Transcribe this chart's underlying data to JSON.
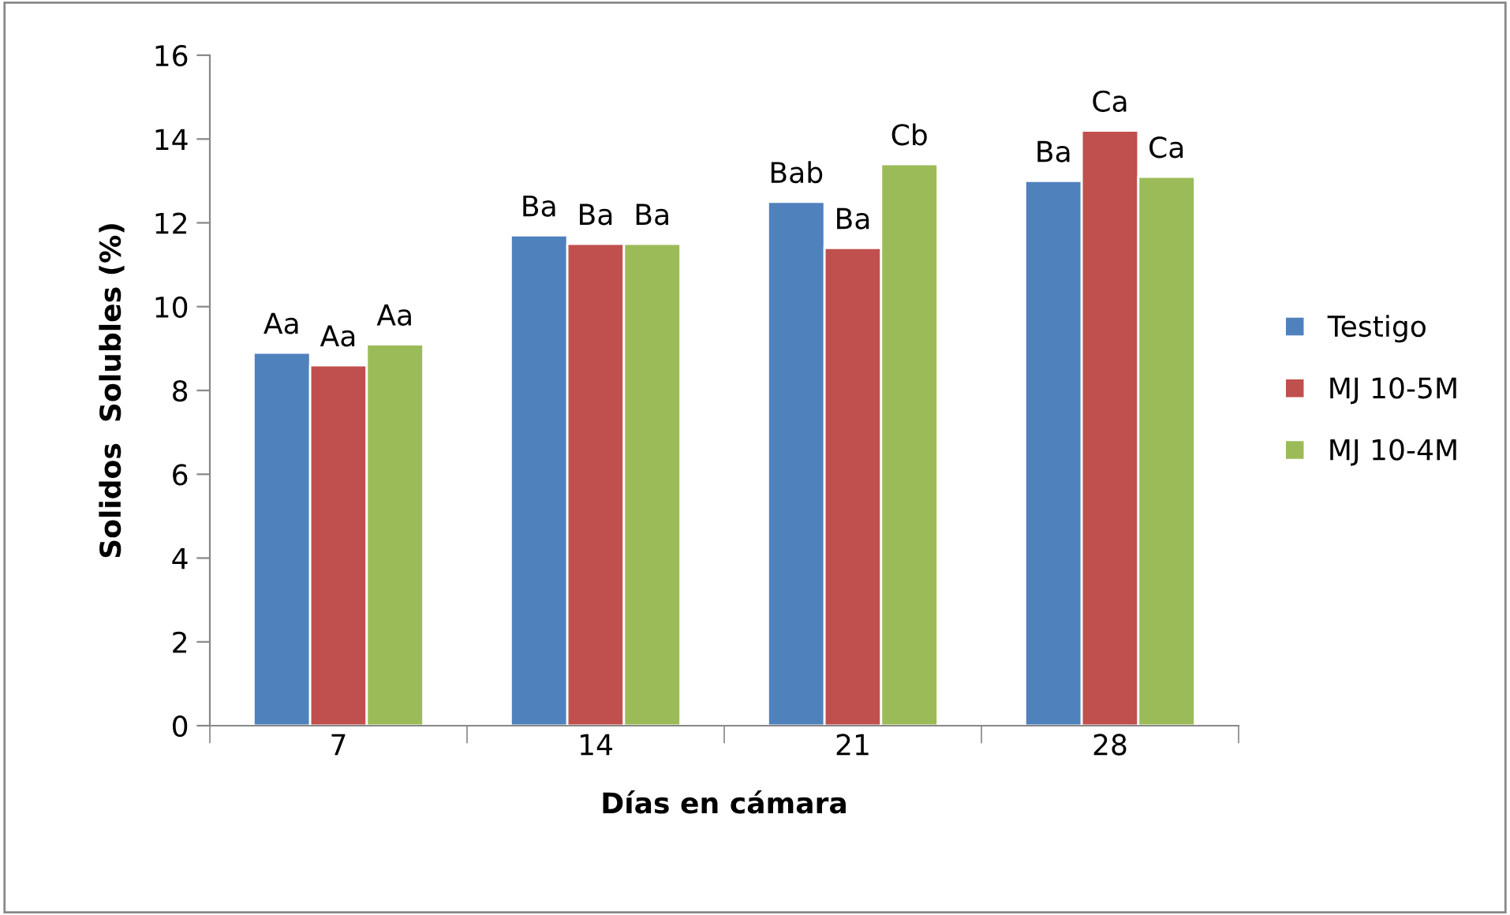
{
  "chart_data": {
    "type": "bar",
    "xlabel": "Días en cámara",
    "ylabel": "Solidos  Solubles (%)",
    "categories": [
      "7",
      "14",
      "21",
      "28"
    ],
    "series": [
      {
        "name": "Testigo",
        "color": "#4f81bd",
        "values": [
          8.9,
          11.7,
          12.5,
          13.0
        ],
        "value_labels": [
          "Aa",
          "Ba",
          "Bab",
          "Ba"
        ]
      },
      {
        "name": "MJ 10-5M",
        "color": "#c0504d",
        "values": [
          8.6,
          11.5,
          11.4,
          14.2
        ],
        "value_labels": [
          "Aa",
          "Ba",
          "Ba",
          "Ca"
        ]
      },
      {
        "name": "MJ 10-4M",
        "color": "#9bbb59",
        "values": [
          9.1,
          11.5,
          13.4,
          13.1
        ],
        "value_labels": [
          "Aa",
          "Ba",
          "Cb",
          "Ca"
        ]
      }
    ],
    "ylim": [
      0,
      16
    ],
    "yticks": [
      0,
      2,
      4,
      6,
      8,
      10,
      12,
      14,
      16
    ],
    "grid": false,
    "legend": "right"
  }
}
